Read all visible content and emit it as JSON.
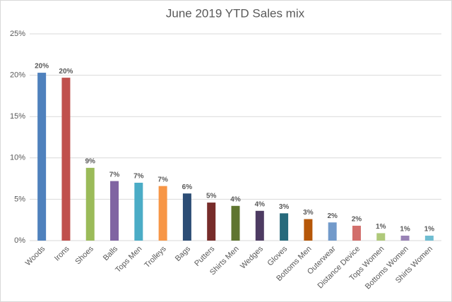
{
  "chart_data": {
    "type": "bar",
    "title": "June 2019 YTD Sales mix",
    "categories": [
      "Woods",
      "Irons",
      "Shoes",
      "Balls",
      "Tops Men",
      "Trolleys",
      "Bags",
      "Putters",
      "Shirts Men",
      "Wedges",
      "Gloves",
      "Bottoms Men",
      "Outerwear",
      "Distance Device",
      "Tops Women",
      "Bottoms Women",
      "Shirts Women"
    ],
    "values": [
      20.3,
      19.7,
      8.8,
      7.2,
      7.0,
      6.6,
      5.7,
      4.6,
      4.2,
      3.6,
      3.3,
      2.6,
      2.2,
      1.8,
      0.9,
      0.6,
      0.6
    ],
    "value_labels": [
      "20%",
      "20%",
      "9%",
      "7%",
      "7%",
      "7%",
      "6%",
      "5%",
      "4%",
      "4%",
      "3%",
      "3%",
      "2%",
      "2%",
      "1%",
      "1%",
      "1%"
    ],
    "colors": [
      "#4f81bd",
      "#c0504d",
      "#9bbb59",
      "#8064a2",
      "#4bacc6",
      "#f79646",
      "#2c4d75",
      "#772c2a",
      "#5f7530",
      "#4d3b62",
      "#276a7c",
      "#b65708",
      "#729aca",
      "#d26f6c",
      "#afc97a",
      "#9983b5",
      "#6fbdd1"
    ],
    "ylim": [
      0,
      25
    ],
    "yticks": [
      {
        "value": 0,
        "label": "0%"
      },
      {
        "value": 5,
        "label": "5%"
      },
      {
        "value": 10,
        "label": "10%"
      },
      {
        "value": 15,
        "label": "15%"
      },
      {
        "value": 20,
        "label": "20%"
      },
      {
        "value": 25,
        "label": "25%"
      }
    ],
    "grid": true
  }
}
